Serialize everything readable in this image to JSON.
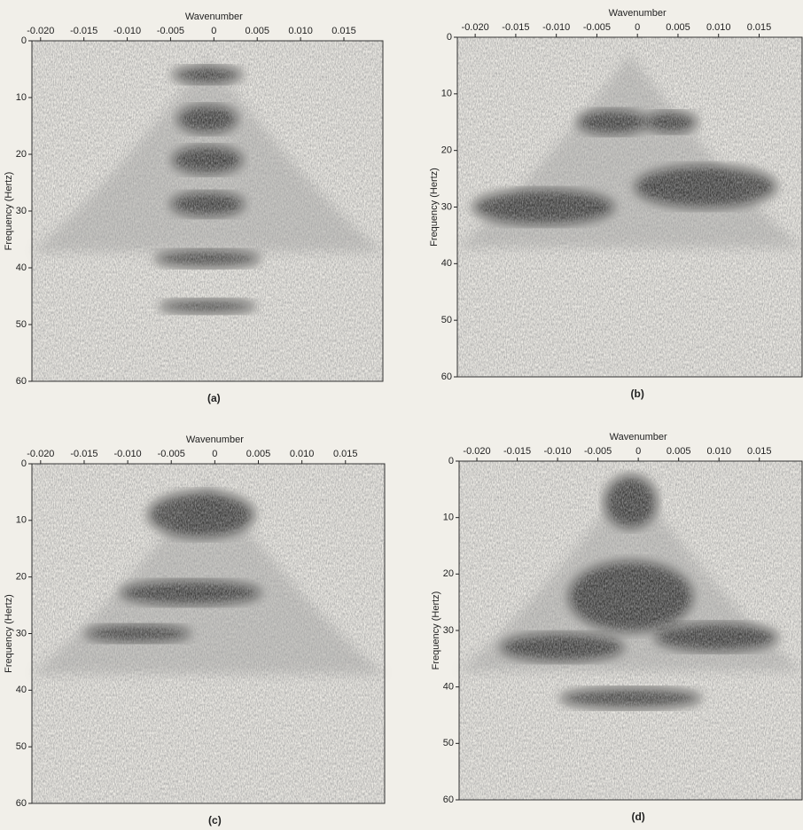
{
  "chart_data": [
    {
      "type": "image",
      "xlabel": "Wavenumber",
      "ylabel": "Frequency (Hertz)",
      "label": "(a)",
      "xlim": [
        -0.021,
        0.0195
      ],
      "ylim": [
        60,
        0
      ],
      "xticks": [
        {
          "value": -0.02,
          "label": "-0.020"
        },
        -0.015,
        {
          "value": -0.01,
          "label": "-0.010"
        },
        -0.005,
        0,
        0.005,
        {
          "value": 0.01,
          "label": "0.010"
        },
        0.015
      ],
      "yticks": [
        0,
        10,
        20,
        30,
        40,
        50,
        60
      ]
    },
    {
      "type": "image",
      "xlabel": "Wavenumber",
      "ylabel": "Frequency (Hertz)",
      "label": "(b)",
      "xlim": [
        -0.0222,
        0.0203
      ],
      "ylim": [
        60,
        0
      ],
      "xticks": [
        {
          "value": -0.02,
          "label": "-0.020"
        },
        -0.015,
        {
          "value": -0.01,
          "label": "-0.010"
        },
        -0.005,
        0,
        0.005,
        {
          "value": 0.01,
          "label": "0.010"
        },
        0.015
      ],
      "yticks": [
        0,
        10,
        20,
        30,
        40,
        50,
        60
      ]
    },
    {
      "type": "image",
      "xlabel": "Wavenumber",
      "ylabel": "Frequency (Hertz)",
      "label": "(c)",
      "xlim": [
        -0.021,
        0.0195
      ],
      "ylim": [
        60,
        0
      ],
      "xticks": [
        {
          "value": -0.02,
          "label": "-0.020"
        },
        -0.015,
        {
          "value": -0.01,
          "label": "-0.010"
        },
        -0.005,
        0,
        0.005,
        {
          "value": 0.01,
          "label": "0.010"
        },
        0.015
      ],
      "yticks": [
        0,
        10,
        20,
        30,
        40,
        50,
        60
      ]
    },
    {
      "type": "image",
      "xlabel": "Wavenumber",
      "ylabel": "Frequency (Hertz)",
      "label": "(d)",
      "xlim": [
        -0.0222,
        0.0203
      ],
      "ylim": [
        60,
        0
      ],
      "xticks": [
        {
          "value": -0.02,
          "label": "-0.020"
        },
        -0.015,
        {
          "value": -0.01,
          "label": "-0.010"
        },
        -0.005,
        0,
        0.005,
        {
          "value": 0.01,
          "label": "0.010"
        },
        0.015
      ],
      "yticks": [
        0,
        10,
        20,
        30,
        40,
        50,
        60
      ]
    }
  ]
}
